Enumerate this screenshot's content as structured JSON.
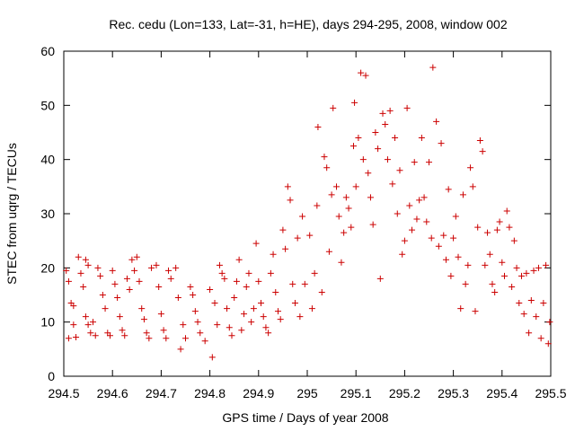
{
  "chart_data": {
    "type": "scatter",
    "title": "Rec. cedu (Lon=133, Lat=-31, h=HE), days 294-295, 2008, window 002",
    "xlabel": "GPS time / Days of year 2008",
    "ylabel": "STEC from uqrg / TECUs",
    "xlim": [
      294.5,
      295.5
    ],
    "ylim": [
      0,
      60
    ],
    "x_ticks": [
      "294.5",
      "294.6",
      "294.7",
      "294.8",
      "294.9",
      "295",
      "295.1",
      "295.2",
      "295.3",
      "295.4",
      "295.5"
    ],
    "y_ticks": [
      "0",
      "10",
      "20",
      "30",
      "40",
      "50",
      "60"
    ],
    "grid": false,
    "legend": "none",
    "marker": "+",
    "color": "#cc0000",
    "points": [
      [
        294.505,
        19.5
      ],
      [
        294.51,
        17.5
      ],
      [
        294.515,
        13.5
      ],
      [
        294.52,
        9.5
      ],
      [
        294.525,
        7.2
      ],
      [
        294.51,
        7.0
      ],
      [
        294.52,
        13.0
      ],
      [
        294.53,
        22.0
      ],
      [
        294.535,
        19.0
      ],
      [
        294.54,
        16.5
      ],
      [
        294.545,
        21.5
      ],
      [
        294.55,
        20.5
      ],
      [
        294.545,
        11.0
      ],
      [
        294.55,
        9.5
      ],
      [
        294.555,
        8.0
      ],
      [
        294.56,
        10.0
      ],
      [
        294.565,
        7.5
      ],
      [
        294.57,
        20.0
      ],
      [
        294.575,
        18.5
      ],
      [
        294.58,
        15.0
      ],
      [
        294.585,
        12.5
      ],
      [
        294.59,
        8.0
      ],
      [
        294.595,
        7.5
      ],
      [
        294.6,
        19.5
      ],
      [
        294.605,
        17.0
      ],
      [
        294.61,
        14.5
      ],
      [
        294.615,
        11.0
      ],
      [
        294.62,
        8.5
      ],
      [
        294.625,
        7.5
      ],
      [
        294.63,
        18.0
      ],
      [
        294.635,
        16.0
      ],
      [
        294.64,
        21.5
      ],
      [
        294.645,
        19.5
      ],
      [
        294.65,
        22.0
      ],
      [
        294.655,
        17.5
      ],
      [
        294.66,
        12.5
      ],
      [
        294.665,
        10.5
      ],
      [
        294.67,
        8.0
      ],
      [
        294.675,
        7.0
      ],
      [
        294.68,
        20.0
      ],
      [
        294.69,
        20.5
      ],
      [
        294.695,
        16.5
      ],
      [
        294.7,
        11.5
      ],
      [
        294.705,
        8.5
      ],
      [
        294.71,
        7.0
      ],
      [
        294.715,
        19.5
      ],
      [
        294.72,
        18.0
      ],
      [
        294.73,
        20.0
      ],
      [
        294.735,
        14.5
      ],
      [
        294.74,
        5.0
      ],
      [
        294.745,
        9.5
      ],
      [
        294.75,
        7.0
      ],
      [
        294.76,
        16.5
      ],
      [
        294.765,
        15.0
      ],
      [
        294.77,
        12.0
      ],
      [
        294.775,
        10.0
      ],
      [
        294.78,
        8.0
      ],
      [
        294.79,
        6.5
      ],
      [
        294.8,
        16.0
      ],
      [
        294.805,
        3.5
      ],
      [
        294.81,
        13.5
      ],
      [
        294.815,
        9.5
      ],
      [
        294.82,
        20.5
      ],
      [
        294.825,
        19.0
      ],
      [
        294.83,
        18.0
      ],
      [
        294.835,
        12.5
      ],
      [
        294.84,
        9.0
      ],
      [
        294.845,
        7.5
      ],
      [
        294.85,
        14.5
      ],
      [
        294.855,
        17.5
      ],
      [
        294.86,
        21.5
      ],
      [
        294.865,
        8.5
      ],
      [
        294.87,
        11.5
      ],
      [
        294.875,
        16.5
      ],
      [
        294.88,
        19.0
      ],
      [
        294.885,
        10.0
      ],
      [
        294.89,
        12.5
      ],
      [
        294.895,
        24.5
      ],
      [
        294.9,
        17.5
      ],
      [
        294.905,
        13.5
      ],
      [
        294.91,
        11.0
      ],
      [
        294.915,
        9.0
      ],
      [
        294.92,
        8.0
      ],
      [
        294.925,
        19.0
      ],
      [
        294.93,
        22.5
      ],
      [
        294.935,
        15.5
      ],
      [
        294.94,
        12.0
      ],
      [
        294.945,
        10.5
      ],
      [
        294.95,
        27.0
      ],
      [
        294.955,
        23.5
      ],
      [
        294.96,
        35.0
      ],
      [
        294.965,
        32.5
      ],
      [
        294.97,
        17.0
      ],
      [
        294.975,
        13.5
      ],
      [
        294.98,
        25.5
      ],
      [
        294.985,
        11.0
      ],
      [
        294.99,
        29.5
      ],
      [
        294.995,
        17.0
      ],
      [
        295.005,
        26.0
      ],
      [
        295.01,
        12.5
      ],
      [
        295.015,
        19.0
      ],
      [
        295.02,
        31.5
      ],
      [
        295.022,
        46.0
      ],
      [
        295.03,
        15.5
      ],
      [
        295.035,
        40.5
      ],
      [
        295.04,
        38.5
      ],
      [
        295.045,
        23.0
      ],
      [
        295.05,
        33.5
      ],
      [
        295.053,
        49.5
      ],
      [
        295.06,
        35.0
      ],
      [
        295.065,
        29.5
      ],
      [
        295.07,
        21.0
      ],
      [
        295.075,
        26.5
      ],
      [
        295.08,
        33.0
      ],
      [
        295.085,
        31.0
      ],
      [
        295.09,
        27.5
      ],
      [
        295.095,
        42.5
      ],
      [
        295.097,
        50.5
      ],
      [
        295.1,
        35.0
      ],
      [
        295.105,
        44.0
      ],
      [
        295.11,
        56.0
      ],
      [
        295.115,
        40.0
      ],
      [
        295.12,
        55.5
      ],
      [
        295.125,
        37.5
      ],
      [
        295.13,
        33.0
      ],
      [
        295.135,
        28.0
      ],
      [
        295.14,
        45.0
      ],
      [
        295.145,
        42.0
      ],
      [
        295.15,
        18.0
      ],
      [
        295.155,
        48.5
      ],
      [
        295.16,
        46.5
      ],
      [
        295.165,
        40.0
      ],
      [
        295.17,
        49.0
      ],
      [
        295.175,
        35.5
      ],
      [
        295.18,
        44.0
      ],
      [
        295.185,
        30.0
      ],
      [
        295.19,
        38.0
      ],
      [
        295.195,
        22.5
      ],
      [
        295.2,
        25.0
      ],
      [
        295.205,
        49.5
      ],
      [
        295.21,
        31.5
      ],
      [
        295.215,
        27.0
      ],
      [
        295.22,
        39.5
      ],
      [
        295.225,
        29.0
      ],
      [
        295.23,
        32.5
      ],
      [
        295.235,
        44.0
      ],
      [
        295.24,
        33.0
      ],
      [
        295.245,
        28.5
      ],
      [
        295.25,
        39.5
      ],
      [
        295.255,
        25.5
      ],
      [
        295.258,
        57.0
      ],
      [
        295.265,
        47.0
      ],
      [
        295.27,
        24.0
      ],
      [
        295.275,
        43.0
      ],
      [
        295.28,
        26.0
      ],
      [
        295.285,
        21.5
      ],
      [
        295.29,
        34.5
      ],
      [
        295.295,
        18.5
      ],
      [
        295.3,
        25.5
      ],
      [
        295.305,
        29.5
      ],
      [
        295.31,
        22.0
      ],
      [
        295.315,
        12.5
      ],
      [
        295.32,
        33.5
      ],
      [
        295.325,
        17.0
      ],
      [
        295.33,
        20.5
      ],
      [
        295.335,
        38.5
      ],
      [
        295.34,
        35.0
      ],
      [
        295.345,
        12.0
      ],
      [
        295.35,
        27.5
      ],
      [
        295.355,
        43.5
      ],
      [
        295.36,
        41.5
      ],
      [
        295.365,
        20.5
      ],
      [
        295.37,
        26.5
      ],
      [
        295.375,
        22.5
      ],
      [
        295.38,
        17.0
      ],
      [
        295.385,
        15.5
      ],
      [
        295.39,
        27.0
      ],
      [
        295.395,
        28.5
      ],
      [
        295.4,
        21.0
      ],
      [
        295.405,
        18.5
      ],
      [
        295.41,
        30.5
      ],
      [
        295.415,
        27.5
      ],
      [
        295.42,
        16.5
      ],
      [
        295.425,
        25.0
      ],
      [
        295.43,
        20.0
      ],
      [
        295.435,
        13.5
      ],
      [
        295.44,
        18.5
      ],
      [
        295.445,
        11.5
      ],
      [
        295.45,
        19.0
      ],
      [
        295.455,
        8.0
      ],
      [
        295.46,
        14.0
      ],
      [
        295.465,
        19.5
      ],
      [
        295.47,
        11.0
      ],
      [
        295.475,
        20.0
      ],
      [
        295.48,
        7.0
      ],
      [
        295.485,
        13.5
      ],
      [
        295.49,
        20.5
      ],
      [
        295.495,
        6.0
      ],
      [
        295.498,
        10.0
      ]
    ]
  }
}
